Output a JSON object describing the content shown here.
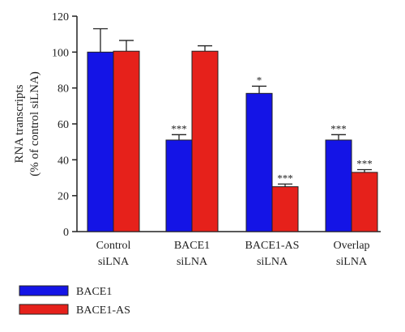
{
  "chart_data": {
    "type": "bar",
    "title": "",
    "xlabel": "",
    "ylabel_lines": [
      "RNA transcripts",
      "(% of control siLNA)"
    ],
    "ylim": [
      0,
      120
    ],
    "yticks": [
      0,
      20,
      40,
      60,
      80,
      100,
      120
    ],
    "categories": [
      [
        "Control",
        "siLNA"
      ],
      [
        "BACE1",
        "siLNA"
      ],
      [
        "BACE1-AS",
        "siLNA"
      ],
      [
        "Overlap",
        "siLNA"
      ]
    ],
    "series": [
      {
        "name": "BACE1",
        "color": "#1414e6",
        "values": [
          100,
          51,
          77,
          51
        ],
        "errors": [
          13,
          3,
          4,
          3
        ],
        "significance": [
          "",
          "***",
          "*",
          "***"
        ]
      },
      {
        "name": "BACE1-AS",
        "color": "#e6211b",
        "values": [
          100.5,
          100.5,
          25,
          33
        ],
        "errors": [
          6,
          3,
          1.5,
          1.5
        ],
        "significance": [
          "",
          "",
          "***",
          "***"
        ]
      }
    ],
    "legend_position": "bottom-left",
    "grid": false
  }
}
